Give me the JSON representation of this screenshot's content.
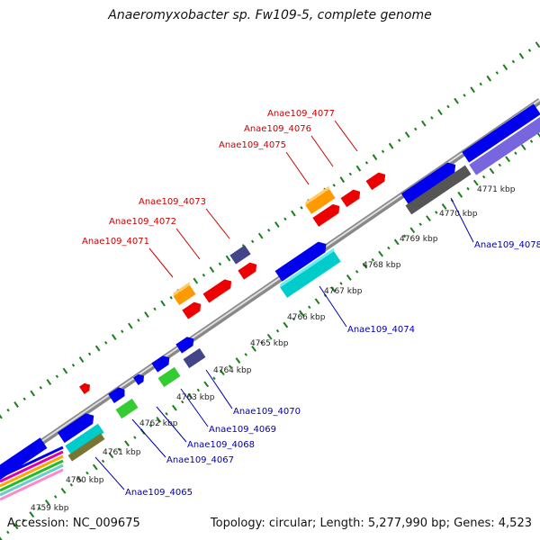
{
  "title": "Anaeromyxobacter sp. Fw109-5, complete genome",
  "footer": {
    "accession": "Accession: NC_009675",
    "topology": "Topology: circular; Length: 5,277,990 bp; Genes: 4,523"
  },
  "colors": {
    "top_labels": "#cc0000",
    "bottom_labels": "#0000aa",
    "backbone": "#999999",
    "ticks": "#1a7f1a"
  },
  "kbp_labels": [
    "4759 kbp",
    "4760 kbp",
    "4761 kbp",
    "4762 kbp",
    "4763 kbp",
    "4764 kbp",
    "4765 kbp",
    "4766 kbp",
    "4767 kbp",
    "4768 kbp",
    "4769 kbp",
    "4770 kbp",
    "4771 kbp"
  ],
  "genes_top": [
    {
      "label": "Anae109_4071"
    },
    {
      "label": "Anae109_4072"
    },
    {
      "label": "Anae109_4073"
    },
    {
      "label": "Anae109_4075"
    },
    {
      "label": "Anae109_4076"
    },
    {
      "label": "Anae109_4077"
    }
  ],
  "genes_bottom": [
    {
      "label": "Anae109_4065"
    },
    {
      "label": "Anae109_4067"
    },
    {
      "label": "Anae109_4068"
    },
    {
      "label": "Anae109_4069"
    },
    {
      "label": "Anae109_4070"
    },
    {
      "label": "Anae109_4074"
    },
    {
      "label": "Anae109_4078"
    }
  ]
}
